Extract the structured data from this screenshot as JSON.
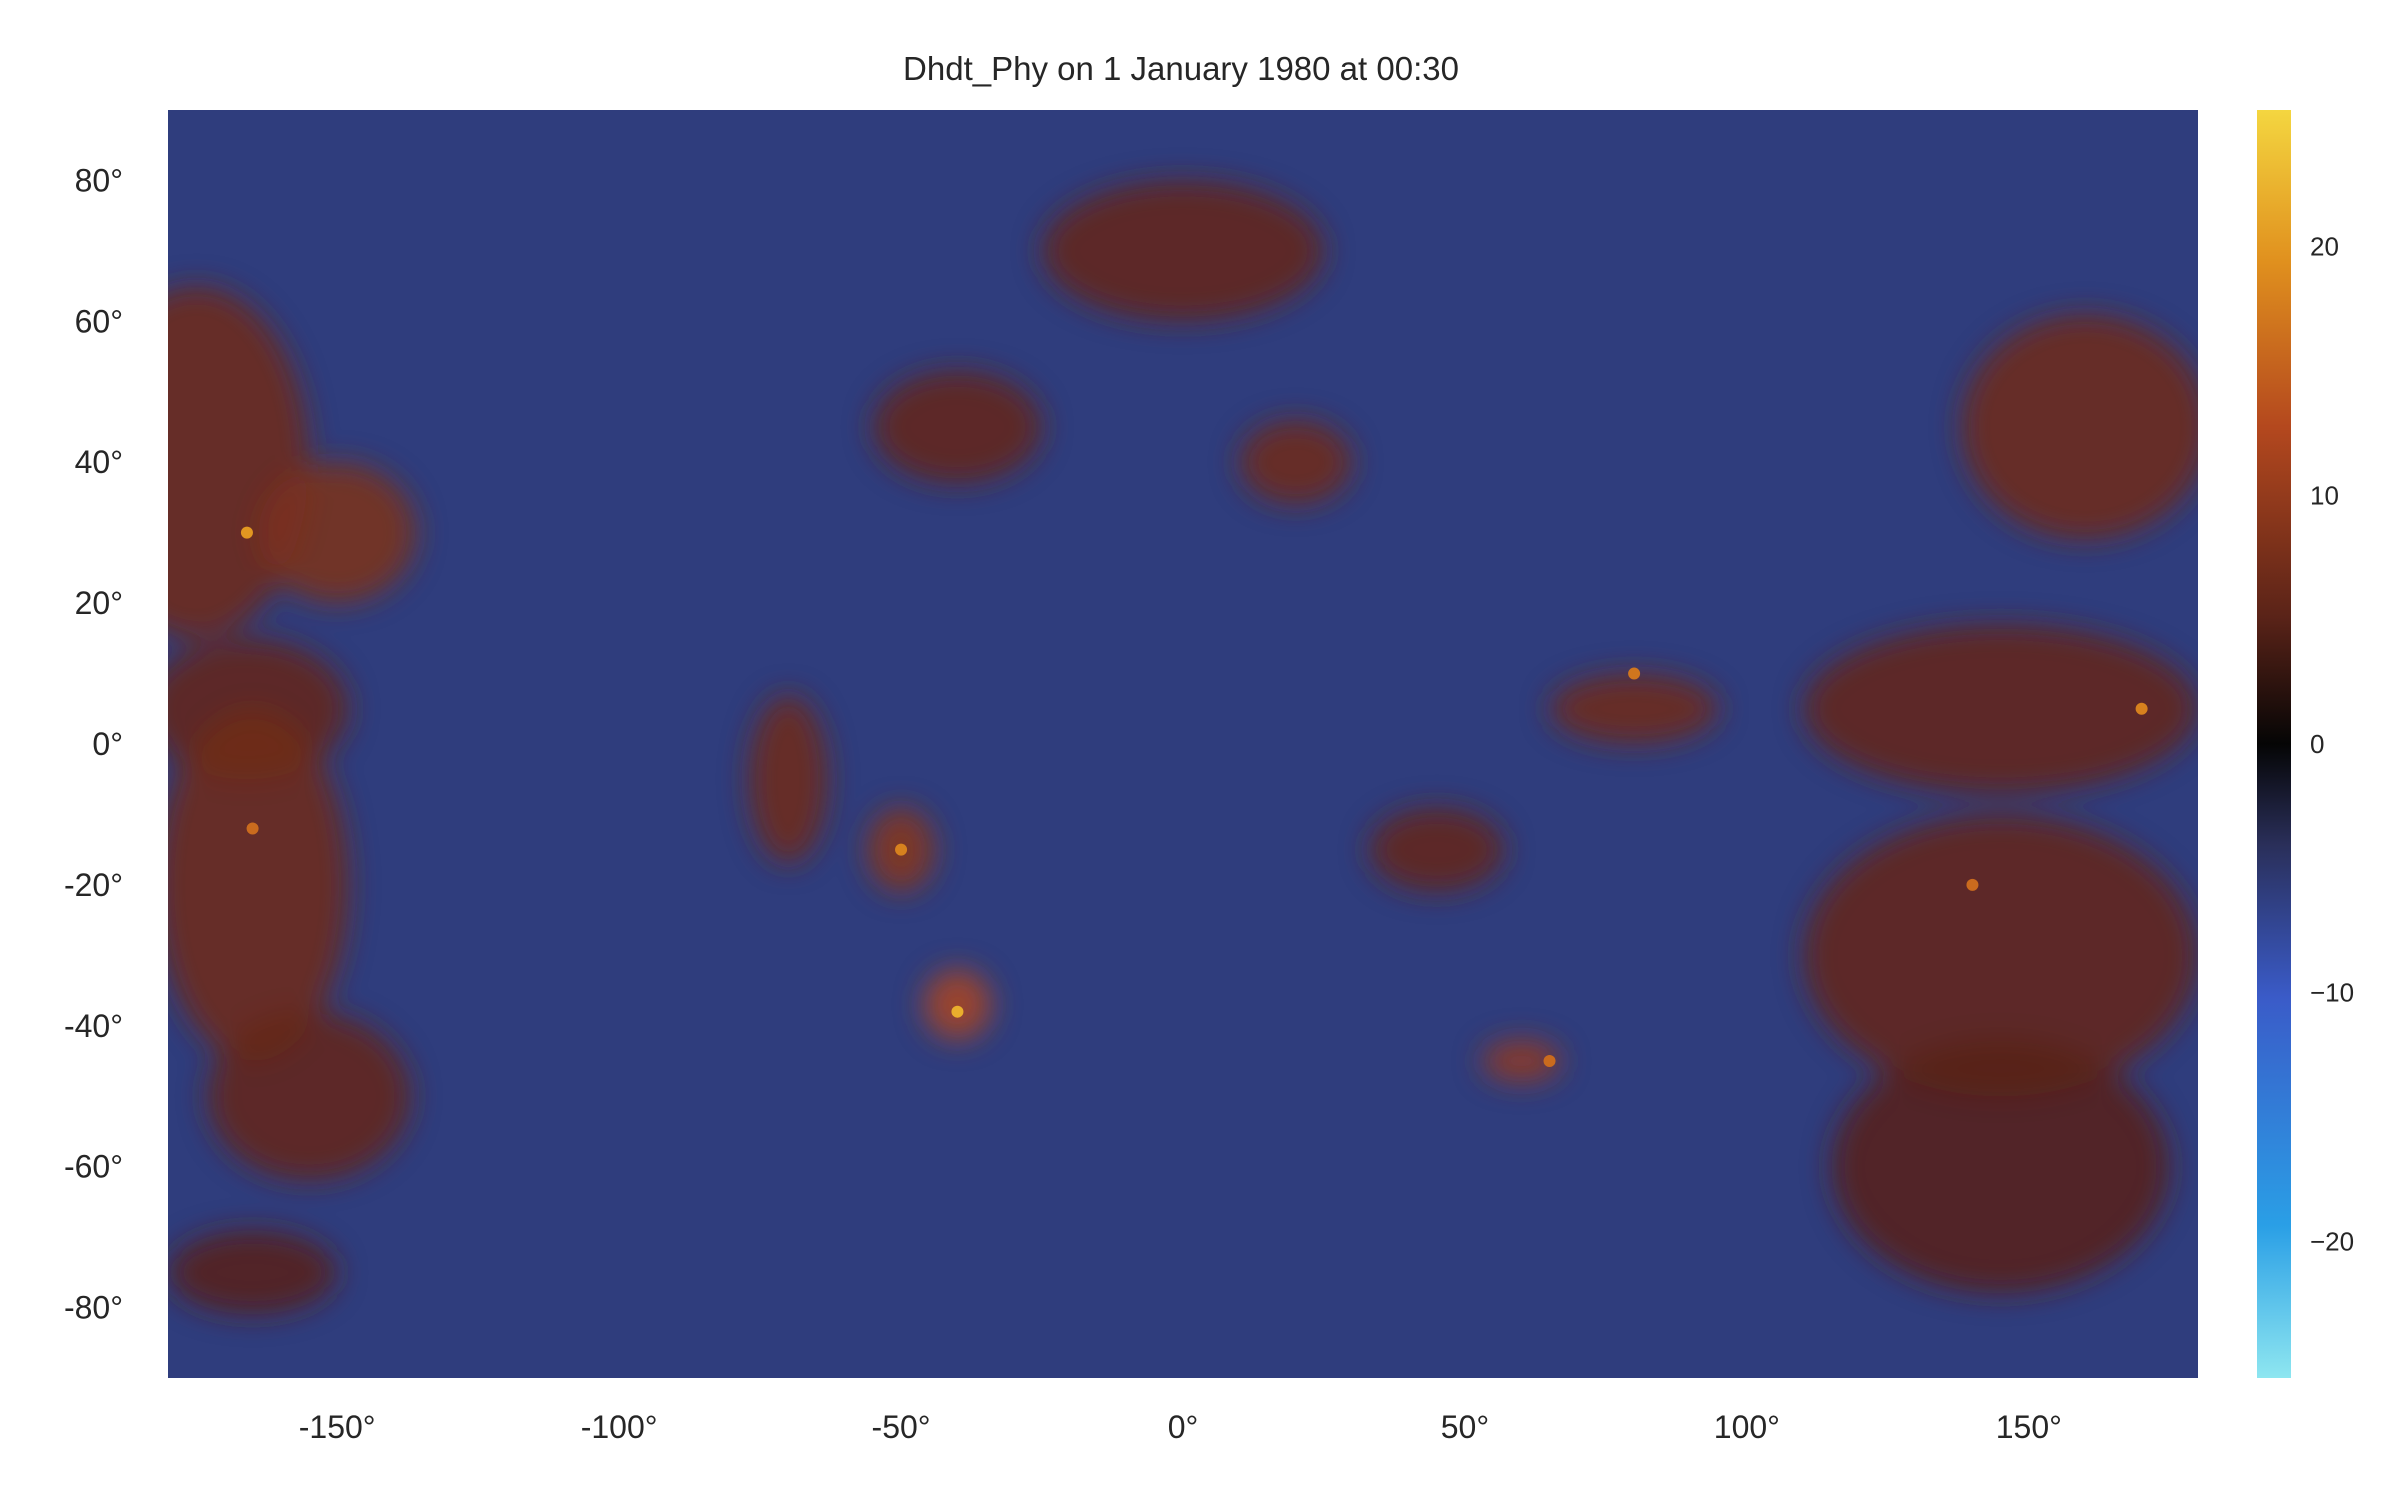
{
  "chart_data": {
    "type": "heatmap",
    "title": "Dhdt_Phy on 1 January 1980 at 00:30",
    "xlabel": "",
    "ylabel": "",
    "x_ticks": [
      {
        "value": -150,
        "label": "-150°"
      },
      {
        "value": -100,
        "label": "-100°"
      },
      {
        "value": -50,
        "label": "-50°"
      },
      {
        "value": 0,
        "label": "0°"
      },
      {
        "value": 50,
        "label": "50°"
      },
      {
        "value": 100,
        "label": "100°"
      },
      {
        "value": 150,
        "label": "150°"
      }
    ],
    "y_ticks": [
      {
        "value": 80,
        "label": "80°"
      },
      {
        "value": 60,
        "label": "60°"
      },
      {
        "value": 40,
        "label": "40°"
      },
      {
        "value": 20,
        "label": "20°"
      },
      {
        "value": 0,
        "label": "0°"
      },
      {
        "value": -20,
        "label": "-20°"
      },
      {
        "value": -40,
        "label": "-40°"
      },
      {
        "value": -60,
        "label": "-60°"
      },
      {
        "value": -80,
        "label": "-80°"
      }
    ],
    "xlim": [
      -180,
      180
    ],
    "ylim": [
      -90,
      90
    ],
    "grid": false,
    "colorbar": {
      "range": [
        -25.5,
        25.5
      ],
      "ticks": [
        {
          "value": 20,
          "label": "20"
        },
        {
          "value": 10,
          "label": "10"
        },
        {
          "value": 0,
          "label": "0"
        },
        {
          "value": -10,
          "label": "−10"
        },
        {
          "value": -20,
          "label": "−20"
        }
      ],
      "colors": [
        {
          "at": 0.0,
          "color": "#8ee6f0"
        },
        {
          "at": 0.12,
          "color": "#2a9fe6"
        },
        {
          "at": 0.3,
          "color": "#3a5bc8"
        },
        {
          "at": 0.42,
          "color": "#2a2f5a"
        },
        {
          "at": 0.5,
          "color": "#050505"
        },
        {
          "at": 0.6,
          "color": "#5a2318"
        },
        {
          "at": 0.75,
          "color": "#b4481e"
        },
        {
          "at": 0.88,
          "color": "#e0901e"
        },
        {
          "at": 1.0,
          "color": "#f4d640"
        }
      ]
    },
    "background_value": -6,
    "regions": [
      {
        "lon": -175,
        "lat": 40,
        "rx": 20,
        "ry": 25,
        "value": 7
      },
      {
        "lon": -150,
        "lat": 30,
        "rx": 14,
        "ry": 10,
        "value": 8
      },
      {
        "lon": -166,
        "lat": 5,
        "rx": 18,
        "ry": 10,
        "value": 6
      },
      {
        "lon": -165,
        "lat": -20,
        "rx": 17,
        "ry": 25,
        "value": 7
      },
      {
        "lon": -155,
        "lat": -50,
        "rx": 18,
        "ry": 12,
        "value": 6
      },
      {
        "lon": -165,
        "lat": -75,
        "rx": 15,
        "ry": 6,
        "value": 5
      },
      {
        "lon": 0,
        "lat": 70,
        "rx": 25,
        "ry": 10,
        "value": 6
      },
      {
        "lon": -40,
        "lat": 45,
        "rx": 15,
        "ry": 8,
        "value": 6
      },
      {
        "lon": 20,
        "lat": 40,
        "rx": 10,
        "ry": 6,
        "value": 7
      },
      {
        "lon": 160,
        "lat": 45,
        "rx": 22,
        "ry": 16,
        "value": 7
      },
      {
        "lon": 145,
        "lat": 5,
        "rx": 35,
        "ry": 12,
        "value": 6
      },
      {
        "lon": 145,
        "lat": -30,
        "rx": 35,
        "ry": 20,
        "value": 6
      },
      {
        "lon": 145,
        "lat": -60,
        "rx": 30,
        "ry": 18,
        "value": 5
      },
      {
        "lon": -40,
        "lat": -37,
        "rx": 6,
        "ry": 5,
        "value": 12
      },
      {
        "lon": 60,
        "lat": -45,
        "rx": 7,
        "ry": 3,
        "value": 10
      },
      {
        "lon": -70,
        "lat": -5,
        "rx": 7,
        "ry": 12,
        "value": 7
      },
      {
        "lon": -50,
        "lat": -15,
        "rx": 6,
        "ry": 6,
        "value": 9
      },
      {
        "lon": 80,
        "lat": 5,
        "rx": 15,
        "ry": 5,
        "value": 7
      },
      {
        "lon": 45,
        "lat": -15,
        "rx": 12,
        "ry": 6,
        "value": 6
      }
    ],
    "hotspots": [
      {
        "lon": -166,
        "lat": 30,
        "value": 20
      },
      {
        "lon": -165,
        "lat": -12,
        "value": 16
      },
      {
        "lon": -40,
        "lat": -38,
        "value": 22
      },
      {
        "lon": -50,
        "lat": -15,
        "value": 18
      },
      {
        "lon": 80,
        "lat": 10,
        "value": 17
      },
      {
        "lon": 140,
        "lat": -20,
        "value": 16
      },
      {
        "lon": 170,
        "lat": 5,
        "value": 18
      },
      {
        "lon": 65,
        "lat": -45,
        "value": 16
      }
    ]
  }
}
